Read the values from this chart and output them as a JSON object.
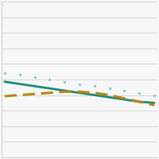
{
  "x": [
    0,
    1,
    2,
    3,
    4,
    5,
    6,
    7,
    8,
    9,
    10
  ],
  "solid_line": [
    0.68,
    0.66,
    0.64,
    0.62,
    0.6,
    0.58,
    0.56,
    0.54,
    0.52,
    0.5,
    0.49
  ],
  "dotted_line": [
    0.76,
    0.74,
    0.72,
    0.7,
    0.68,
    0.66,
    0.64,
    0.62,
    0.6,
    0.58,
    0.56
  ],
  "dashed_line": [
    0.55,
    0.56,
    0.57,
    0.58,
    0.59,
    0.59,
    0.58,
    0.56,
    0.53,
    0.5,
    0.47
  ],
  "solid_color": "#1a8a7a",
  "dotted_color": "#7ecece",
  "dashed_color": "#b8860b",
  "background_color": "#f7f7f7",
  "ylim": [
    0.0,
    1.4
  ],
  "xlim": [
    -0.2,
    10.2
  ],
  "grid_color": "#d0d0d0",
  "grid_y_positions": [
    0.0,
    0.14,
    0.28,
    0.42,
    0.56,
    0.7,
    0.84,
    0.98,
    1.12,
    1.26,
    1.4
  ]
}
